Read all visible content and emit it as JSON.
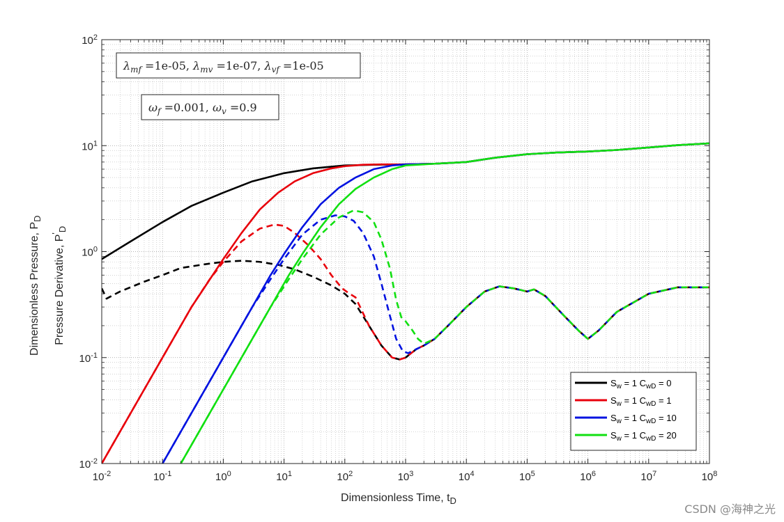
{
  "chart_data": {
    "type": "line",
    "xscale": "log",
    "yscale": "log",
    "xlim": [
      0.01,
      100000000
    ],
    "ylim": [
      0.01,
      100
    ],
    "grid": true,
    "minor_grid": true,
    "xlabel": "Dimensionless Time, t",
    "xlabel_sub": "D",
    "ylabel_line1": "Dimensionless Pressure, P",
    "ylabel_line1_sub": "D",
    "ylabel_line2": "Pressure Derivative, P",
    "ylabel_line2_sup": "'",
    "ylabel_line2_sub": "D",
    "x_ticks": [
      {
        "base": "10",
        "exp": "-2"
      },
      {
        "base": "10",
        "exp": "-1"
      },
      {
        "base": "10",
        "exp": "0"
      },
      {
        "base": "10",
        "exp": "1"
      },
      {
        "base": "10",
        "exp": "2"
      },
      {
        "base": "10",
        "exp": "3"
      },
      {
        "base": "10",
        "exp": "4"
      },
      {
        "base": "10",
        "exp": "5"
      },
      {
        "base": "10",
        "exp": "6"
      },
      {
        "base": "10",
        "exp": "7"
      },
      {
        "base": "10",
        "exp": "8"
      }
    ],
    "y_ticks": [
      {
        "base": "10",
        "exp": "-2"
      },
      {
        "base": "10",
        "exp": "-1"
      },
      {
        "base": "10",
        "exp": "0"
      },
      {
        "base": "10",
        "exp": "1"
      },
      {
        "base": "10",
        "exp": "2"
      }
    ],
    "annotations": [
      {
        "text": "λmf =1e-05, λmv =1e-07, λvf =1e-05",
        "parts": [
          {
            "t": "λ",
            "i": true
          },
          {
            "t": "mf",
            "sub": true,
            "i": true
          },
          {
            "t": " =1e-05, "
          },
          {
            "t": "λ",
            "i": true
          },
          {
            "t": "mv",
            "sub": true,
            "i": true
          },
          {
            "t": " =1e-07, "
          },
          {
            "t": "λ",
            "i": true
          },
          {
            "t": "vf",
            "sub": true,
            "i": true
          },
          {
            "t": " =1e-05"
          }
        ]
      },
      {
        "text": "ωf =0.001, ωv =0.9",
        "parts": [
          {
            "t": "ω",
            "i": true
          },
          {
            "t": "f",
            "sub": true,
            "i": true
          },
          {
            "t": " =0.001, "
          },
          {
            "t": "ω",
            "i": true
          },
          {
            "t": "v",
            "sub": true,
            "i": true
          },
          {
            "t": " =0.9"
          }
        ]
      }
    ],
    "legend_location": "bottom-right",
    "series": [
      {
        "name": "Sw = 1  CwD = 0",
        "label_parts": [
          {
            "t": "S"
          },
          {
            "t": "w",
            "sub": true
          },
          {
            "t": " = 1  C"
          },
          {
            "t": "wD",
            "sub": true
          },
          {
            "t": " = 0"
          }
        ],
        "color": "#000000",
        "pressure": [
          [
            0.01,
            0.85
          ],
          [
            0.03,
            1.25
          ],
          [
            0.1,
            1.9
          ],
          [
            0.3,
            2.7
          ],
          [
            1,
            3.6
          ],
          [
            3,
            4.6
          ],
          [
            10,
            5.5
          ],
          [
            30,
            6.1
          ],
          [
            100,
            6.5
          ],
          [
            300,
            6.6
          ],
          [
            1000,
            6.65
          ],
          [
            3000,
            6.75
          ],
          [
            10000,
            7.0
          ],
          [
            30000,
            7.7
          ],
          [
            100000,
            8.3
          ],
          [
            300000,
            8.6
          ],
          [
            1000000,
            8.8
          ],
          [
            3000000,
            9.1
          ],
          [
            10000000,
            9.6
          ],
          [
            30000000,
            10.1
          ],
          [
            100000000,
            10.5
          ]
        ],
        "derivative": [
          [
            0.01,
            0.45
          ],
          [
            0.012,
            0.36
          ],
          [
            0.02,
            0.42
          ],
          [
            0.05,
            0.52
          ],
          [
            0.1,
            0.6
          ],
          [
            0.2,
            0.7
          ],
          [
            0.5,
            0.76
          ],
          [
            1,
            0.8
          ],
          [
            2,
            0.82
          ],
          [
            4,
            0.8
          ],
          [
            8,
            0.75
          ],
          [
            15,
            0.68
          ],
          [
            30,
            0.58
          ],
          [
            60,
            0.48
          ],
          [
            100,
            0.4
          ],
          [
            150,
            0.32
          ],
          [
            250,
            0.2
          ],
          [
            400,
            0.13
          ],
          [
            600,
            0.1
          ],
          [
            800,
            0.096
          ],
          [
            1000,
            0.1
          ],
          [
            1500,
            0.12
          ],
          [
            2000,
            0.13
          ],
          [
            3000,
            0.15
          ],
          [
            5000,
            0.2
          ],
          [
            10000,
            0.3
          ],
          [
            20000,
            0.42
          ],
          [
            35000,
            0.47
          ],
          [
            60000,
            0.45
          ],
          [
            100000,
            0.42
          ],
          [
            130000,
            0.44
          ],
          [
            200000,
            0.38
          ],
          [
            400000,
            0.25
          ],
          [
            700000,
            0.18
          ],
          [
            1000000,
            0.15
          ],
          [
            1500000,
            0.18
          ],
          [
            3000000,
            0.27
          ],
          [
            10000000,
            0.4
          ],
          [
            30000000,
            0.46
          ],
          [
            100000000,
            0.46
          ]
        ]
      },
      {
        "name": "Sw = 1  CwD = 1",
        "label_parts": [
          {
            "t": "S"
          },
          {
            "t": "w",
            "sub": true
          },
          {
            "t": " = 1  C"
          },
          {
            "t": "wD",
            "sub": true
          },
          {
            "t": " = 1"
          }
        ],
        "color": "#e8000b",
        "pressure": [
          [
            0.01,
            0.01
          ],
          [
            0.03,
            0.03
          ],
          [
            0.1,
            0.1
          ],
          [
            0.3,
            0.3
          ],
          [
            1,
            0.85
          ],
          [
            2,
            1.5
          ],
          [
            4,
            2.5
          ],
          [
            8,
            3.6
          ],
          [
            15,
            4.6
          ],
          [
            30,
            5.5
          ],
          [
            60,
            6.1
          ],
          [
            100,
            6.4
          ],
          [
            200,
            6.6
          ],
          [
            400,
            6.65
          ],
          [
            1000,
            6.65
          ],
          [
            3000,
            6.75
          ],
          [
            10000,
            7.0
          ],
          [
            30000,
            7.7
          ],
          [
            100000,
            8.3
          ],
          [
            300000,
            8.6
          ],
          [
            1000000,
            8.8
          ],
          [
            3000000,
            9.1
          ],
          [
            10000000,
            9.6
          ],
          [
            30000000,
            10.1
          ],
          [
            100000000,
            10.5
          ]
        ],
        "derivative": [
          [
            0.01,
            0.01
          ],
          [
            0.03,
            0.03
          ],
          [
            0.1,
            0.1
          ],
          [
            0.3,
            0.3
          ],
          [
            0.6,
            0.55
          ],
          [
            1,
            0.8
          ],
          [
            2,
            1.25
          ],
          [
            4,
            1.65
          ],
          [
            7,
            1.8
          ],
          [
            10,
            1.75
          ],
          [
            15,
            1.5
          ],
          [
            25,
            1.15
          ],
          [
            40,
            0.85
          ],
          [
            60,
            0.6
          ],
          [
            90,
            0.45
          ],
          [
            120,
            0.4
          ],
          [
            150,
            0.37
          ],
          [
            250,
            0.2
          ],
          [
            400,
            0.13
          ],
          [
            600,
            0.1
          ],
          [
            800,
            0.096
          ],
          [
            1000,
            0.1
          ],
          [
            1500,
            0.12
          ],
          [
            2000,
            0.13
          ],
          [
            3000,
            0.15
          ],
          [
            5000,
            0.2
          ],
          [
            10000,
            0.3
          ],
          [
            20000,
            0.42
          ],
          [
            35000,
            0.47
          ],
          [
            60000,
            0.45
          ],
          [
            100000,
            0.42
          ],
          [
            130000,
            0.44
          ],
          [
            200000,
            0.38
          ],
          [
            400000,
            0.25
          ],
          [
            700000,
            0.18
          ],
          [
            1000000,
            0.15
          ],
          [
            1500000,
            0.18
          ],
          [
            3000000,
            0.27
          ],
          [
            10000000,
            0.4
          ],
          [
            30000000,
            0.46
          ],
          [
            100000000,
            0.46
          ]
        ]
      },
      {
        "name": "Sw = 1  CwD = 10",
        "label_parts": [
          {
            "t": "S"
          },
          {
            "t": "w",
            "sub": true
          },
          {
            "t": " = 1  C"
          },
          {
            "t": "wD",
            "sub": true
          },
          {
            "t": " = 10"
          }
        ],
        "color": "#0012e0",
        "pressure": [
          [
            0.1,
            0.01
          ],
          [
            0.3,
            0.03
          ],
          [
            1,
            0.1
          ],
          [
            3,
            0.3
          ],
          [
            6,
            0.6
          ],
          [
            10,
            0.95
          ],
          [
            20,
            1.7
          ],
          [
            40,
            2.8
          ],
          [
            80,
            4.0
          ],
          [
            150,
            5.0
          ],
          [
            300,
            6.0
          ],
          [
            600,
            6.5
          ],
          [
            1000,
            6.65
          ],
          [
            3000,
            6.75
          ],
          [
            10000,
            7.0
          ],
          [
            30000,
            7.7
          ],
          [
            100000,
            8.3
          ],
          [
            300000,
            8.6
          ],
          [
            1000000,
            8.8
          ],
          [
            3000000,
            9.1
          ],
          [
            10000000,
            9.6
          ],
          [
            30000000,
            10.1
          ],
          [
            100000000,
            10.5
          ]
        ],
        "derivative": [
          [
            0.1,
            0.01
          ],
          [
            0.3,
            0.03
          ],
          [
            1,
            0.1
          ],
          [
            3,
            0.3
          ],
          [
            6,
            0.55
          ],
          [
            10,
            0.85
          ],
          [
            20,
            1.45
          ],
          [
            40,
            2.0
          ],
          [
            70,
            2.2
          ],
          [
            100,
            2.15
          ],
          [
            140,
            1.95
          ],
          [
            200,
            1.5
          ],
          [
            300,
            0.9
          ],
          [
            400,
            0.5
          ],
          [
            550,
            0.25
          ],
          [
            700,
            0.15
          ],
          [
            900,
            0.115
          ],
          [
            1100,
            0.11
          ],
          [
            1500,
            0.12
          ],
          [
            2000,
            0.13
          ],
          [
            3000,
            0.15
          ],
          [
            5000,
            0.2
          ],
          [
            10000,
            0.3
          ],
          [
            20000,
            0.42
          ],
          [
            35000,
            0.47
          ],
          [
            60000,
            0.45
          ],
          [
            100000,
            0.42
          ],
          [
            130000,
            0.44
          ],
          [
            200000,
            0.38
          ],
          [
            400000,
            0.25
          ],
          [
            700000,
            0.18
          ],
          [
            1000000,
            0.15
          ],
          [
            1500000,
            0.18
          ],
          [
            3000000,
            0.27
          ],
          [
            10000000,
            0.4
          ],
          [
            30000000,
            0.46
          ],
          [
            100000000,
            0.46
          ]
        ]
      },
      {
        "name": "Sw = 1  CwD = 20",
        "label_parts": [
          {
            "t": "S"
          },
          {
            "t": "w",
            "sub": true
          },
          {
            "t": " = 1  C"
          },
          {
            "t": "wD",
            "sub": true
          },
          {
            "t": " = 20"
          }
        ],
        "color": "#11e011",
        "pressure": [
          [
            0.2,
            0.01
          ],
          [
            0.6,
            0.03
          ],
          [
            2,
            0.1
          ],
          [
            6,
            0.3
          ],
          [
            12,
            0.6
          ],
          [
            20,
            0.95
          ],
          [
            40,
            1.7
          ],
          [
            80,
            2.8
          ],
          [
            150,
            3.9
          ],
          [
            300,
            5.0
          ],
          [
            600,
            6.0
          ],
          [
            1000,
            6.5
          ],
          [
            2000,
            6.65
          ],
          [
            3000,
            6.75
          ],
          [
            10000,
            7.0
          ],
          [
            30000,
            7.7
          ],
          [
            100000,
            8.3
          ],
          [
            300000,
            8.6
          ],
          [
            1000000,
            8.8
          ],
          [
            3000000,
            9.1
          ],
          [
            10000000,
            9.6
          ],
          [
            30000000,
            10.1
          ],
          [
            100000000,
            10.5
          ]
        ],
        "derivative": [
          [
            0.2,
            0.01
          ],
          [
            0.6,
            0.03
          ],
          [
            2,
            0.1
          ],
          [
            6,
            0.3
          ],
          [
            12,
            0.55
          ],
          [
            20,
            0.85
          ],
          [
            40,
            1.45
          ],
          [
            80,
            2.1
          ],
          [
            140,
            2.45
          ],
          [
            200,
            2.35
          ],
          [
            300,
            1.9
          ],
          [
            400,
            1.3
          ],
          [
            550,
            0.7
          ],
          [
            700,
            0.35
          ],
          [
            850,
            0.24
          ],
          [
            1000,
            0.22
          ],
          [
            1300,
            0.18
          ],
          [
            1600,
            0.15
          ],
          [
            2000,
            0.135
          ],
          [
            3000,
            0.15
          ],
          [
            5000,
            0.2
          ],
          [
            10000,
            0.3
          ],
          [
            20000,
            0.42
          ],
          [
            35000,
            0.47
          ],
          [
            60000,
            0.45
          ],
          [
            100000,
            0.42
          ],
          [
            130000,
            0.44
          ],
          [
            200000,
            0.38
          ],
          [
            400000,
            0.25
          ],
          [
            700000,
            0.18
          ],
          [
            1000000,
            0.15
          ],
          [
            1500000,
            0.18
          ],
          [
            3000000,
            0.27
          ],
          [
            10000000,
            0.4
          ],
          [
            30000000,
            0.46
          ],
          [
            100000000,
            0.46
          ]
        ]
      }
    ]
  },
  "watermark": "CSDN @海神之光"
}
